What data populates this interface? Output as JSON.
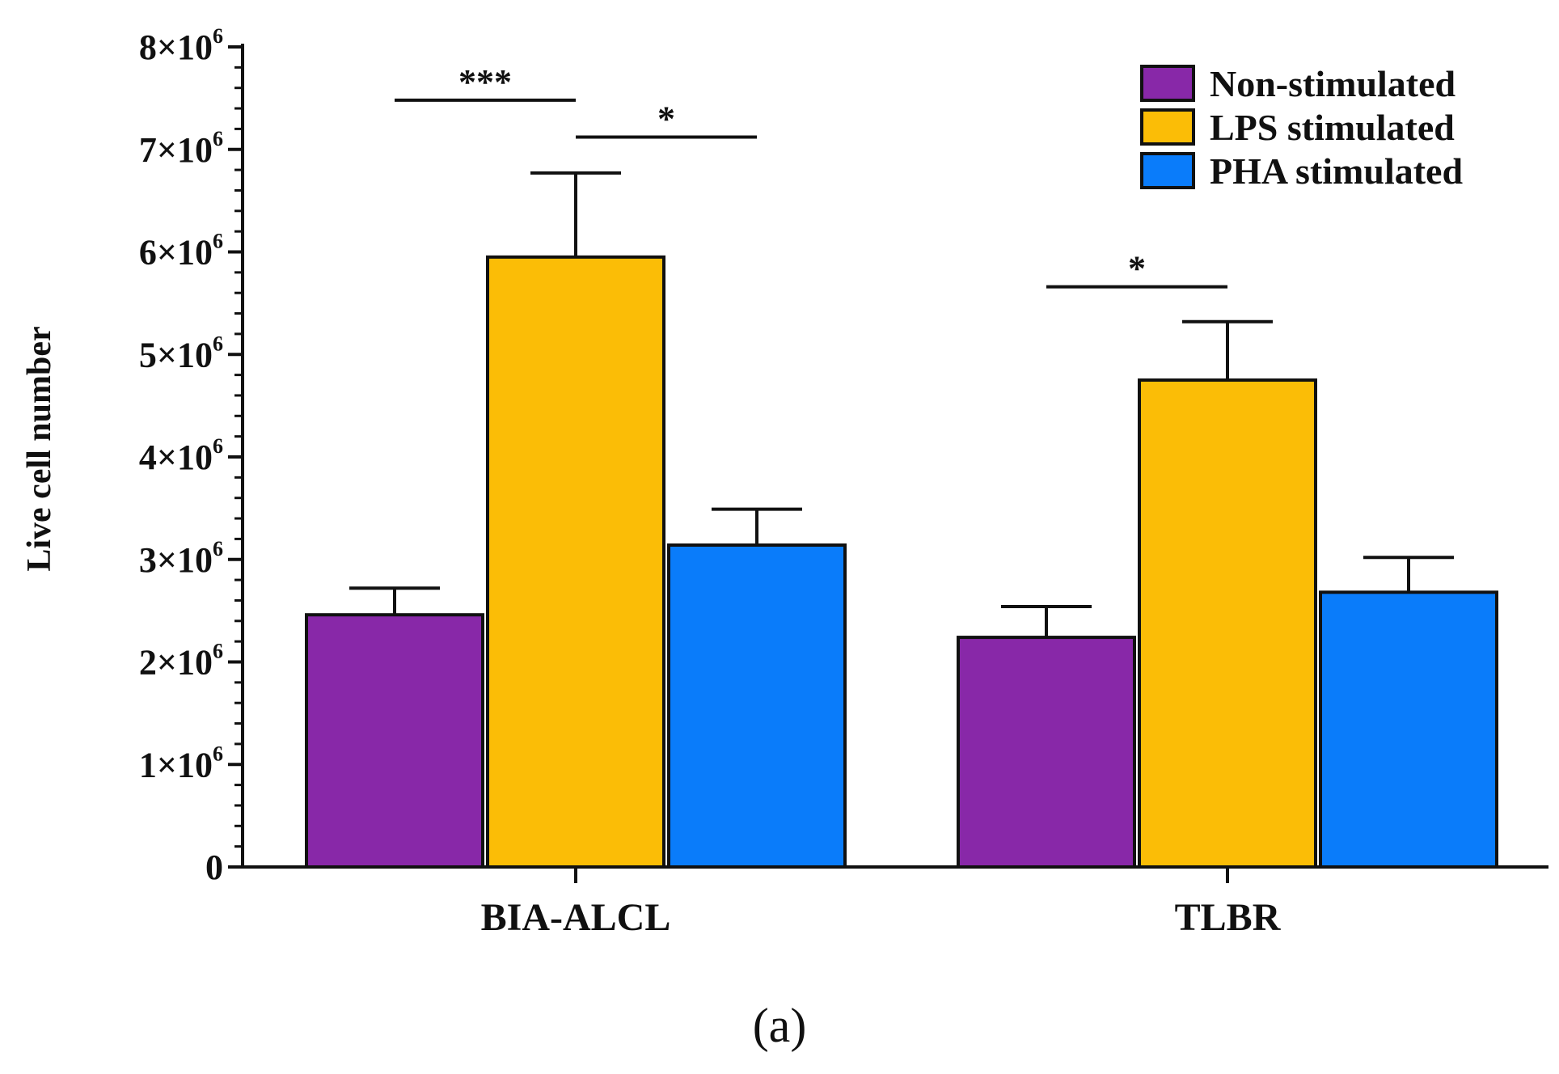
{
  "chart_data": {
    "type": "bar",
    "title": "",
    "xlabel": "",
    "ylabel": "Live cell number",
    "ylim": [
      0,
      8000000
    ],
    "yticks": [
      0,
      1000000,
      2000000,
      3000000,
      4000000,
      5000000,
      6000000,
      7000000,
      8000000
    ],
    "ytick_labels": [
      {
        "mantissa": "0",
        "exponent": ""
      },
      {
        "mantissa": "1×10",
        "exponent": "6"
      },
      {
        "mantissa": "2×10",
        "exponent": "6"
      },
      {
        "mantissa": "3×10",
        "exponent": "6"
      },
      {
        "mantissa": "4×10",
        "exponent": "6"
      },
      {
        "mantissa": "5×10",
        "exponent": "6"
      },
      {
        "mantissa": "6×10",
        "exponent": "6"
      },
      {
        "mantissa": "7×10",
        "exponent": "6"
      },
      {
        "mantissa": "8×10",
        "exponent": "6"
      }
    ],
    "categories": [
      "BIA-ALCL",
      "TLBR"
    ],
    "series": [
      {
        "name": "Non-stimulated",
        "color": "#8828a8",
        "values": [
          2460000,
          2240000
        ],
        "errors": [
          260000,
          300000
        ]
      },
      {
        "name": "LPS stimulated",
        "color": "#fbbd06",
        "values": [
          5950000,
          4750000
        ],
        "errors": [
          820000,
          570000
        ]
      },
      {
        "name": "PHA stimulated",
        "color": "#0a7cfa",
        "values": [
          3140000,
          2680000
        ],
        "errors": [
          350000,
          340000
        ]
      }
    ],
    "significance": [
      {
        "category": 0,
        "from_series": 0,
        "to_series": 1,
        "label": "***",
        "level": 7480000
      },
      {
        "category": 0,
        "from_series": 1,
        "to_series": 2,
        "label": "*",
        "level": 7120000
      },
      {
        "category": 1,
        "from_series": 0,
        "to_series": 1,
        "label": "*",
        "level": 5660000
      }
    ],
    "legend_position": "top-right",
    "panel_label": "(a)"
  }
}
